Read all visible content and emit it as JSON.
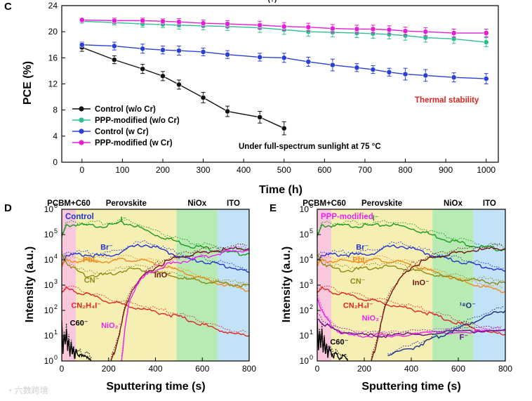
{
  "chart_data": [
    {
      "panel": "C",
      "type": "line",
      "title_fragment": "(?)",
      "xlabel": "Time (h)",
      "ylabel": "PCE (%)",
      "xlim": [
        -50,
        1030
      ],
      "ylim": [
        0,
        24
      ],
      "xticks": [
        "0",
        "100",
        "200",
        "300",
        "400",
        "500",
        "600",
        "700",
        "800",
        "900",
        "1000"
      ],
      "yticks": [
        "0",
        "4",
        "8",
        "12",
        "16",
        "20",
        "24"
      ],
      "legend_position": "lower-left",
      "series": [
        {
          "name": "Control (w/o Cr)",
          "color": "#111111",
          "x": [
            0,
            80,
            150,
            200,
            240,
            300,
            360,
            440,
            500
          ],
          "y": [
            17.6,
            15.7,
            14.3,
            13.2,
            11.9,
            9.9,
            7.8,
            6.9,
            5.2
          ],
          "err": [
            0.6,
            0.6,
            0.7,
            0.7,
            0.7,
            0.8,
            0.8,
            0.9,
            1.0
          ]
        },
        {
          "name": "PPP-modified (w/o Cr)",
          "color": "#2fbf8f",
          "x": [
            0,
            80,
            150,
            200,
            240,
            300,
            360,
            440,
            500,
            560,
            620,
            680,
            720,
            760,
            800,
            850,
            920,
            1000
          ],
          "y": [
            21.6,
            21.4,
            21.2,
            21.1,
            21.0,
            20.9,
            20.8,
            20.6,
            20.3,
            20.0,
            19.9,
            19.8,
            19.7,
            19.6,
            19.4,
            19.1,
            18.9,
            18.4
          ],
          "err": [
            0.3,
            0.4,
            0.5,
            0.5,
            0.6,
            0.6,
            0.6,
            0.7,
            0.7,
            0.7,
            0.7,
            0.7,
            0.7,
            0.7,
            0.7,
            0.7,
            0.7,
            0.7
          ]
        },
        {
          "name": "Control (w Cr)",
          "color": "#2a3fd6",
          "x": [
            0,
            80,
            150,
            200,
            240,
            300,
            360,
            440,
            500,
            560,
            620,
            680,
            720,
            760,
            800,
            850,
            920,
            1000
          ],
          "y": [
            18.0,
            17.8,
            17.4,
            17.2,
            17.1,
            16.9,
            16.5,
            16.1,
            16.0,
            15.4,
            14.9,
            14.5,
            14.2,
            13.8,
            13.5,
            13.3,
            13.0,
            12.8
          ],
          "err": [
            0.4,
            0.6,
            0.7,
            0.6,
            0.7,
            0.6,
            0.6,
            0.6,
            0.7,
            0.7,
            0.9,
            0.6,
            0.6,
            0.6,
            0.9,
            0.9,
            0.7,
            0.8
          ]
        },
        {
          "name": "PPP-modified (w Cr)",
          "color": "#e41ed8",
          "x": [
            0,
            80,
            150,
            200,
            240,
            300,
            360,
            440,
            500,
            560,
            620,
            680,
            720,
            760,
            800,
            850,
            920,
            1000
          ],
          "y": [
            21.8,
            21.7,
            21.7,
            21.6,
            21.5,
            21.3,
            21.2,
            21.0,
            20.8,
            20.7,
            20.5,
            20.4,
            20.4,
            20.3,
            20.1,
            20.0,
            19.8,
            19.8
          ],
          "err": [
            0.3,
            0.4,
            0.4,
            0.4,
            0.5,
            0.5,
            0.5,
            0.6,
            0.6,
            0.6,
            0.6,
            0.6,
            0.6,
            0.6,
            0.6,
            0.6,
            0.6,
            0.6
          ]
        }
      ],
      "annotations": {
        "thermal": {
          "text": "Thermal stability",
          "color": "#e02424"
        },
        "sunlight": {
          "text": "Under full-spectrum sunlight at 75 °C",
          "color": "#000000"
        }
      }
    },
    {
      "panel": "D",
      "type": "line",
      "xlabel": "Sputtering time (s)",
      "ylabel": "Intensity (a.u.)",
      "xlim": [
        0,
        800
      ],
      "ylim_log10": [
        0,
        6
      ],
      "xticks": [
        "0",
        "200",
        "400",
        "600",
        "800"
      ],
      "yticks": [
        "10",
        "10",
        "10",
        "10",
        "10",
        "10",
        "10"
      ],
      "ytick_exponents": [
        "0",
        "1",
        "2",
        "3",
        "4",
        "5",
        "6"
      ],
      "regions": [
        {
          "label": "PCBM+C60",
          "x": [
            0,
            60
          ],
          "color": "#f9c8dd"
        },
        {
          "label": "Perovskite",
          "x": [
            60,
            490
          ],
          "color": "#f6efb4"
        },
        {
          "label": "NiOx",
          "x": [
            490,
            665
          ],
          "color": "#b8ebb4"
        },
        {
          "label": "ITO",
          "x": [
            665,
            800
          ],
          "color": "#c2e2f7"
        }
      ],
      "inset_title": {
        "text": "Control",
        "color": "#2233cc"
      },
      "series": [
        {
          "name": "I⁻",
          "color": "#1a9a1a",
          "t": [
            0,
            20,
            60,
            100,
            150,
            200,
            250,
            300,
            350,
            400,
            450,
            500,
            550,
            600,
            650,
            700,
            750,
            800
          ],
          "log10": [
            4.9,
            5.35,
            5.4,
            5.35,
            5.35,
            5.35,
            5.45,
            5.4,
            5.2,
            5.0,
            4.85,
            4.7,
            4.55,
            4.5,
            4.4,
            4.3,
            4.25,
            4.25
          ]
        },
        {
          "name": "Br⁻",
          "color": "#2233cc",
          "t": [
            0,
            20,
            60,
            100,
            150,
            200,
            250,
            300,
            350,
            400,
            450,
            500,
            550,
            600,
            650,
            700,
            750,
            800
          ],
          "log10": [
            3.8,
            4.2,
            4.2,
            4.2,
            4.15,
            4.15,
            4.3,
            4.5,
            4.6,
            4.5,
            4.3,
            4.15,
            4.0,
            3.95,
            3.85,
            3.75,
            3.65,
            3.5
          ]
        },
        {
          "name": "PbI₂",
          "color": "#f08a18",
          "t": [
            0,
            20,
            60,
            100,
            150,
            200,
            250,
            300,
            350,
            400,
            450,
            500,
            550,
            600,
            650,
            700,
            750,
            800
          ],
          "log10": [
            3.8,
            3.95,
            3.95,
            3.95,
            3.95,
            3.95,
            4.0,
            4.0,
            3.95,
            3.85,
            3.7,
            3.55,
            3.4,
            3.25,
            3.1,
            3.0,
            2.9,
            2.8
          ]
        },
        {
          "name": "CN⁻",
          "color": "#8a8a12",
          "t": [
            0,
            20,
            60,
            100,
            150,
            200,
            250,
            300,
            350,
            400,
            450,
            500,
            550,
            600,
            650,
            700,
            750,
            800
          ],
          "log10": [
            4.2,
            3.9,
            3.6,
            3.4,
            3.4,
            3.4,
            3.55,
            3.65,
            3.6,
            3.5,
            3.4,
            3.3,
            3.2,
            3.15,
            3.1,
            3.05,
            3.0,
            3.0
          ]
        },
        {
          "name": "CN₂H₄I⁻",
          "color": "#e02424",
          "t": [
            0,
            20,
            60,
            100,
            150,
            200,
            250,
            300,
            350,
            400,
            450,
            500,
            550,
            600,
            650,
            700,
            750,
            800
          ],
          "log10": [
            2.75,
            2.85,
            2.75,
            2.65,
            2.5,
            2.35,
            2.25,
            2.15,
            2.05,
            1.95,
            1.85,
            1.75,
            1.6,
            1.45,
            1.3,
            1.15,
            1.05,
            1.0
          ]
        },
        {
          "name": "InO⁻",
          "color": "#6e1410",
          "t": [
            210,
            230,
            250,
            270,
            300,
            350,
            400,
            450,
            500,
            550,
            600,
            650,
            700,
            750,
            800
          ],
          "log10": [
            0.0,
            0.5,
            1.2,
            2.1,
            2.8,
            3.35,
            3.7,
            3.95,
            4.1,
            4.2,
            4.3,
            4.35,
            4.4,
            4.45,
            4.45
          ]
        },
        {
          "name": "NiO₂⁻",
          "color": "#ee22ee",
          "t": [
            255,
            270,
            290,
            320,
            360,
            400,
            450,
            500,
            550,
            600,
            650,
            700,
            750,
            800
          ],
          "log10": [
            0.0,
            1.3,
            2.4,
            3.0,
            3.4,
            3.6,
            3.8,
            3.9,
            4.0,
            4.1,
            4.2,
            4.3,
            4.35,
            4.4
          ]
        },
        {
          "name": "C60⁻",
          "color": "#000000",
          "t": [
            0,
            5,
            10,
            15,
            20,
            25,
            30,
            35,
            40,
            45,
            50,
            55,
            60,
            70,
            80,
            95,
            110,
            130
          ],
          "log10": [
            1.6,
            0.3,
            1.1,
            0.6,
            1.3,
            0.4,
            0.9,
            0.2,
            0.7,
            0.3,
            0.5,
            0.1,
            0.4,
            0.2,
            0.3,
            0.1,
            0.2,
            0.0
          ]
        }
      ]
    },
    {
      "panel": "E",
      "type": "line",
      "xlabel": "Sputtering time (s)",
      "ylabel": "Intensity (a.u.)",
      "xlim": [
        0,
        800
      ],
      "ylim_log10": [
        0,
        6
      ],
      "xticks": [
        "0",
        "200",
        "400",
        "600",
        "800"
      ],
      "yticks": [
        "10",
        "10",
        "10",
        "10",
        "10",
        "10",
        "10"
      ],
      "ytick_exponents": [
        "0",
        "1",
        "2",
        "3",
        "4",
        "5",
        "6"
      ],
      "regions": [
        {
          "label": "PCBM+C60",
          "x": [
            0,
            60
          ],
          "color": "#f9c8dd"
        },
        {
          "label": "Perovskite",
          "x": [
            60,
            490
          ],
          "color": "#f6efb4"
        },
        {
          "label": "NiOx",
          "x": [
            490,
            665
          ],
          "color": "#b8ebb4"
        },
        {
          "label": "ITO",
          "x": [
            665,
            800
          ],
          "color": "#c2e2f7"
        }
      ],
      "inset_title": {
        "text": "PPP-modified",
        "color": "#ee22ee"
      },
      "series": [
        {
          "name": "I⁻",
          "color": "#1a9a1a",
          "t": [
            0,
            20,
            60,
            100,
            150,
            200,
            250,
            300,
            350,
            400,
            450,
            500,
            550,
            600,
            650,
            700,
            750,
            800
          ],
          "log10": [
            4.9,
            5.35,
            5.35,
            5.35,
            5.35,
            5.35,
            5.35,
            5.4,
            5.35,
            5.25,
            5.1,
            4.95,
            4.8,
            4.7,
            4.6,
            4.5,
            4.45,
            4.4
          ]
        },
        {
          "name": "Br⁻",
          "color": "#2233cc",
          "t": [
            0,
            20,
            60,
            100,
            150,
            200,
            250,
            300,
            350,
            400,
            450,
            500,
            550,
            600,
            650,
            700,
            750,
            800
          ],
          "log10": [
            4.0,
            4.2,
            4.2,
            4.2,
            4.2,
            4.2,
            4.3,
            4.5,
            4.55,
            4.45,
            4.3,
            4.15,
            4.05,
            3.95,
            3.85,
            3.75,
            3.65,
            3.55
          ]
        },
        {
          "name": "PbI₂",
          "color": "#f08a18",
          "t": [
            0,
            20,
            60,
            100,
            150,
            200,
            250,
            300,
            350,
            400,
            450,
            500,
            550,
            600,
            650,
            700,
            750,
            800
          ],
          "log10": [
            3.85,
            3.95,
            3.95,
            3.95,
            3.95,
            3.95,
            4.0,
            3.95,
            3.9,
            3.8,
            3.65,
            3.5,
            3.35,
            3.2,
            3.05,
            2.95,
            2.85,
            2.75
          ]
        },
        {
          "name": "CN⁻",
          "color": "#8a8a12",
          "t": [
            0,
            20,
            60,
            100,
            150,
            200,
            250,
            300,
            350,
            400,
            450,
            500,
            550,
            600,
            650,
            700,
            750,
            800
          ],
          "log10": [
            4.2,
            3.9,
            3.7,
            3.6,
            3.6,
            3.65,
            3.7,
            3.75,
            3.7,
            3.6,
            3.5,
            3.4,
            3.3,
            3.25,
            3.2,
            3.15,
            3.1,
            3.1
          ]
        },
        {
          "name": "CN₂H₄I⁻",
          "color": "#e02424",
          "t": [
            0,
            20,
            60,
            100,
            150,
            200,
            250,
            300,
            350,
            400,
            450,
            500,
            550,
            600,
            650,
            700,
            750,
            800
          ],
          "log10": [
            2.75,
            2.85,
            2.75,
            2.65,
            2.55,
            2.45,
            2.35,
            2.25,
            2.15,
            2.05,
            1.95,
            1.8,
            1.65,
            1.5,
            1.35,
            1.2,
            1.1,
            1.05
          ]
        },
        {
          "name": "InO⁻",
          "color": "#6e1410",
          "t": [
            230,
            250,
            270,
            290,
            320,
            360,
            400,
            450,
            500,
            550,
            600,
            650,
            700,
            750,
            800
          ],
          "log10": [
            0.0,
            0.6,
            1.4,
            2.2,
            2.8,
            3.3,
            3.7,
            3.95,
            4.1,
            4.2,
            4.3,
            4.35,
            4.4,
            4.45,
            4.45
          ]
        },
        {
          "name": "NiO₂⁻",
          "color": "#ee22ee",
          "t": [
            0,
            30,
            60,
            100,
            150,
            200,
            250,
            300,
            400,
            500,
            600,
            700,
            800
          ],
          "log10": [
            2.5,
            1.8,
            1.4,
            1.1,
            1.0,
            1.0,
            1.0,
            1.0,
            1.05,
            1.1,
            1.15,
            1.15,
            1.2
          ]
        },
        {
          "name": "¹⁸O⁻",
          "color": "#1a2f8a",
          "t": [
            300,
            400,
            450,
            500,
            550,
            600,
            650,
            700,
            750,
            800
          ],
          "log10": [
            0.2,
            0.5,
            0.7,
            0.9,
            1.1,
            1.3,
            1.5,
            1.7,
            1.9,
            2.0
          ]
        },
        {
          "name": "F⁻",
          "color": "#6a0a8a",
          "t": [
            0,
            40,
            80,
            150,
            200,
            250,
            300,
            400,
            500,
            600,
            700,
            800
          ],
          "log10": [
            1.7,
            1.4,
            1.2,
            1.1,
            1.0,
            1.0,
            1.0,
            1.05,
            1.1,
            1.15,
            1.2,
            1.25
          ]
        },
        {
          "name": "C60⁻",
          "color": "#000000",
          "t": [
            0,
            5,
            10,
            15,
            20,
            25,
            30,
            35,
            40,
            45,
            50,
            60,
            70,
            80,
            95,
            110,
            130
          ],
          "log10": [
            1.6,
            0.4,
            1.2,
            0.5,
            1.3,
            0.3,
            0.9,
            0.3,
            0.6,
            0.2,
            0.5,
            0.3,
            0.2,
            0.3,
            0.1,
            0.2,
            0.0
          ]
        }
      ]
    }
  ],
  "watermark": "六数跨境"
}
